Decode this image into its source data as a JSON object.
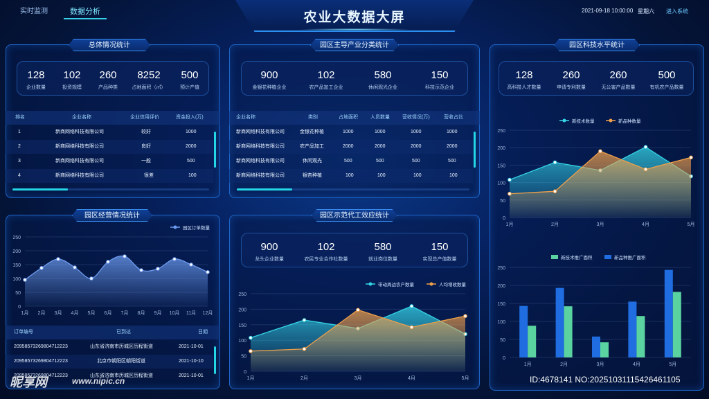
{
  "nav": {
    "realtime": "实时监测",
    "analysis": "数据分析"
  },
  "header": {
    "title": "农业大数据大屏",
    "datetime": "2021-09-18 10:00:00",
    "weekday": "星期六",
    "enter": "进入系统"
  },
  "overall": {
    "title": "总体情况统计",
    "stats": [
      {
        "value": "128",
        "label": "企业数量"
      },
      {
        "value": "102",
        "label": "投资规模"
      },
      {
        "value": "260",
        "label": "产品种类"
      },
      {
        "value": "8252",
        "label": "占地面积（㎡）"
      },
      {
        "value": "500",
        "label": "预计产值"
      }
    ],
    "columns": [
      "排名",
      "企业名称",
      "企业信用评价",
      "资金投入(万)"
    ],
    "rows": [
      [
        "1",
        "新商网络科技有限公司",
        "较好",
        "1000"
      ],
      [
        "2",
        "新商网络科技有限公司",
        "良好",
        "2000"
      ],
      [
        "3",
        "新商网络科技有限公司",
        "一般",
        "500"
      ],
      [
        "4",
        "新商网络科技有限公司",
        "很差",
        "100"
      ]
    ]
  },
  "industry": {
    "title": "园区主导产业分类统计",
    "stats": [
      {
        "value": "900",
        "label": "金银花种植企业"
      },
      {
        "value": "102",
        "label": "农产品加工企业"
      },
      {
        "value": "580",
        "label": "休闲观光企业"
      },
      {
        "value": "150",
        "label": "科技示范企业"
      }
    ],
    "columns": [
      "企业名称",
      "类别",
      "占地面积",
      "人员数量",
      "营收情况(万)",
      "营收占比"
    ],
    "rows": [
      [
        "新商网络科技有限公司",
        "金银花种植",
        "1000",
        "1000",
        "1000",
        "1000"
      ],
      [
        "新商网络科技有限公司",
        "农产品加工",
        "2000",
        "2000",
        "2000",
        "2000"
      ],
      [
        "新商网络科技有限公司",
        "休闲观光",
        "500",
        "500",
        "500",
        "500"
      ],
      [
        "新商网络科技有限公司",
        "银杏种植",
        "100",
        "100",
        "100",
        "100"
      ]
    ]
  },
  "tech": {
    "title": "园区科技水平统计",
    "stats": [
      {
        "value": "128",
        "label": "高科技人才数量"
      },
      {
        "value": "260",
        "label": "申请专利数量"
      },
      {
        "value": "260",
        "label": "无公害产品数量"
      },
      {
        "value": "500",
        "label": "有机农产品数量"
      }
    ]
  },
  "operation": {
    "title": "园区经营情况统计",
    "columns": [
      "订单编号",
      "已到达",
      "日期"
    ],
    "rows": [
      [
        "20958573269804712223",
        "山东省济南市历城区历程街道",
        "2021-10-01"
      ],
      [
        "20958573269804712223",
        "北京市朝阳区朝阳街道",
        "2021-10-10"
      ],
      [
        "20958573269804712223",
        "山东省济南市历城区历程街道",
        "2021-10-01"
      ]
    ]
  },
  "demo": {
    "title": "园区示范代工效应统计",
    "stats": [
      {
        "value": "900",
        "label": "龙头企业数量"
      },
      {
        "value": "102",
        "label": "农民专业合作社数量"
      },
      {
        "value": "580",
        "label": "就业岗位数量"
      },
      {
        "value": "150",
        "label": "实现总产值数量"
      }
    ]
  },
  "chart_data": [
    {
      "type": "area",
      "series": [
        {
          "name": "园区订单数量",
          "values": [
            95,
            138,
            170,
            140,
            100,
            160,
            180,
            130,
            135,
            170,
            150,
            123
          ]
        }
      ],
      "categories": [
        "1月",
        "2月",
        "3月",
        "4月",
        "5月",
        "6月",
        "7月",
        "8月",
        "9月",
        "10月",
        "11月",
        "12月"
      ],
      "ylim": [
        0,
        250
      ],
      "yticks": [
        0,
        50,
        100,
        150,
        200,
        250
      ],
      "legend": "top-right",
      "colors": [
        "#6e9cf0"
      ]
    },
    {
      "type": "area",
      "series": [
        {
          "name": "带动周边农户数量",
          "values": [
            108,
            165,
            138,
            210,
            120
          ]
        },
        {
          "name": "人均增收数量",
          "values": [
            65,
            72,
            198,
            142,
            178
          ]
        }
      ],
      "categories": [
        "1月",
        "2月",
        "3月",
        "4月",
        "5月"
      ],
      "ylim": [
        0,
        250
      ],
      "yticks": [
        0,
        50,
        100,
        150,
        200,
        250
      ],
      "legend": "top-right",
      "colors": [
        "#35d6e8",
        "#f0a04a"
      ]
    },
    {
      "type": "area",
      "series": [
        {
          "name": "新技术数量",
          "values": [
            108,
            158,
            135,
            202,
            118
          ]
        },
        {
          "name": "新品种数量",
          "values": [
            68,
            75,
            190,
            138,
            172
          ]
        }
      ],
      "categories": [
        "1月",
        "2月",
        "3月",
        "4月",
        "5月"
      ],
      "ylim": [
        0,
        250
      ],
      "yticks": [
        0,
        50,
        100,
        150,
        200,
        250
      ],
      "legend": "top-center",
      "colors": [
        "#35d6e8",
        "#f0a04a"
      ]
    },
    {
      "type": "bar",
      "series": [
        {
          "name": "新技术推广面积",
          "values": [
            88,
            142,
            42,
            115,
            182
          ]
        },
        {
          "name": "新品种推广面积",
          "values": [
            143,
            193,
            58,
            155,
            243
          ]
        }
      ],
      "categories": [
        "1月",
        "2月",
        "3月",
        "4月",
        "5月"
      ],
      "ylim": [
        0,
        250
      ],
      "yticks": [
        0,
        50,
        100,
        150,
        200,
        250
      ],
      "legend": "top-center",
      "colors": [
        "#5ad3a0",
        "#1f6de0"
      ]
    }
  ],
  "watermark": {
    "logo": "昵享网",
    "url": "www.nipic.cn",
    "id": "ID:4678141 NO:20251031115426461105"
  }
}
